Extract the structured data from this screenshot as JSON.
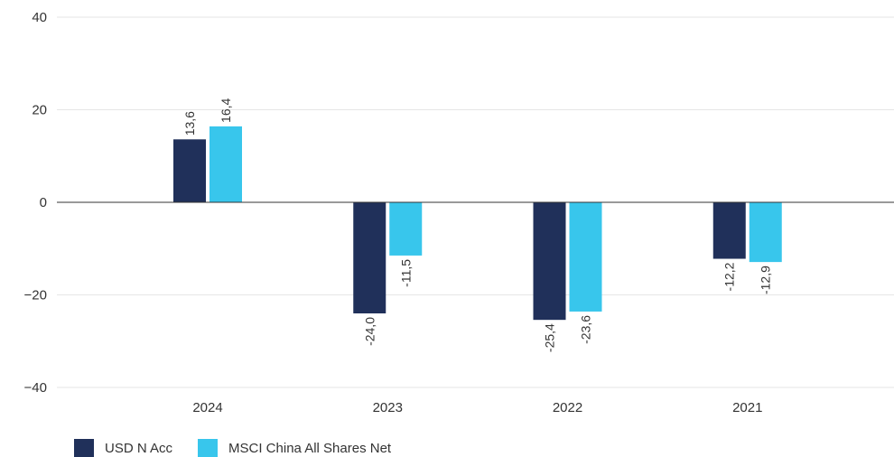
{
  "chart_data": {
    "type": "bar",
    "title": "",
    "xlabel": "",
    "ylabel": "",
    "categories": [
      "2024",
      "2023",
      "2022",
      "2021"
    ],
    "series": [
      {
        "name": "USD N Acc",
        "color": "#20305a",
        "values": [
          13.6,
          -24.0,
          -25.4,
          -12.2
        ],
        "labels": [
          "13,6",
          "-24,0",
          "-25,4",
          "-12,2"
        ]
      },
      {
        "name": "MSCI China All Shares Net",
        "color": "#38c6ec",
        "values": [
          16.4,
          -11.5,
          -23.6,
          -12.9
        ],
        "labels": [
          "16,4",
          "-11,5",
          "-23,6",
          "-12,9"
        ]
      }
    ],
    "ylim": [
      -40,
      40
    ],
    "yticks": [
      40,
      20,
      0,
      -20,
      -40
    ],
    "ytick_labels": [
      "40",
      "20",
      "0",
      "−20",
      "−40"
    ],
    "grid": true,
    "legend_position": "bottom-left"
  }
}
